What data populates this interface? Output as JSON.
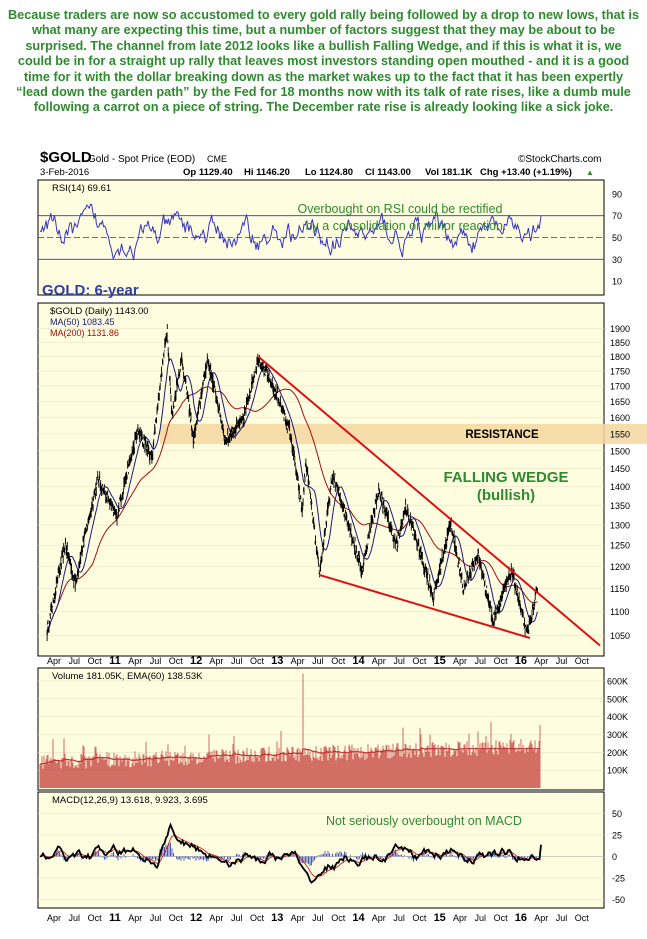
{
  "intro_text": "Because traders are now so accustomed to every gold rally being followed by a drop to new lows, that is what many are expecting this time, but a number of factors suggest that they may be about to be surprised. The channel from late 2012 looks like a bullish Falling Wedge, and if this is what it is, we could be in for a straight up rally that leaves most investors standing open mouthed - and it is a good time for it with the dollar breaking down as the market wakes up to the fact that it has been expertly “lead down the garden path” by the Fed for 18 months now with its talk of rate rises, like a dumb mule following a carrot on a piece of string. The December rate rise is already looking like a sick joke.",
  "header": {
    "symbol": "$GOLD",
    "name": "Gold - Spot Price (EOD)",
    "exchange": "CME",
    "date": "3-Feb-2016",
    "op": "Op 1129.40",
    "hi": "Hi 1146.20",
    "lo": "Lo 1124.80",
    "cl": "Cl 1143.00",
    "vol": "Vol 181.1K",
    "chg": "Chg +13.40 (+1.19%)",
    "chg_arrow": "▲",
    "brand": "©StockCharts.com"
  },
  "colors": {
    "panel_bg": "#fffde0",
    "price": "#000000",
    "ma50": "#1a1a7a",
    "ma200": "#a01010",
    "wedge": "#dd1111",
    "resistance": "#f5d7a0",
    "rsi": "#3535c0",
    "annotation_green": "#2e8b2e",
    "annotation_blue": "#2f3fa8",
    "volume": "#c03030",
    "macd": "#000000",
    "signal": "#cc2222",
    "hist": "#4a5ac0"
  },
  "annotations": {
    "rsi_note": [
      "Overbought on RSI could be rectified",
      "by a consolidation or minor reaction."
    ],
    "gold_title": "GOLD: 6-year",
    "resistance": "RESISTANCE",
    "wedge_title": "FALLING WEDGE",
    "wedge_sub": "(bullish)",
    "macd_note": "Not seriously overbought on MACD"
  },
  "chart_data": [
    {
      "type": "line",
      "panel": "rsi",
      "label": "RSI(14) 69.61",
      "series": [
        {
          "name": "RSI(14)",
          "last": 69.61
        }
      ],
      "ylim": [
        0,
        100
      ],
      "yticks": [
        10,
        30,
        50,
        70,
        90
      ],
      "reference_lines": [
        30,
        50,
        70
      ]
    },
    {
      "type": "line",
      "panel": "price",
      "legend": [
        "$GOLD (Daily) 1143.00",
        "MA(50) 1083.45",
        "MA(200) 1131.86"
      ],
      "x_date_range": [
        "2010-03-01",
        "2016-11-01"
      ],
      "yscale": "log",
      "ylim": [
        1025,
        1950
      ],
      "yticks": [
        1050,
        1100,
        1150,
        1200,
        1250,
        1300,
        1350,
        1400,
        1450,
        1500,
        1550,
        1600,
        1650,
        1700,
        1750,
        1800,
        1850,
        1900
      ],
      "series": [
        {
          "name": "$GOLD",
          "points": [
            [
              "2010-04-01",
              1060
            ],
            [
              "2010-06-20",
              1250
            ],
            [
              "2010-08-01",
              1160
            ],
            [
              "2010-11-08",
              1420
            ],
            [
              "2011-01-28",
              1320
            ],
            [
              "2011-05-01",
              1560
            ],
            [
              "2011-07-01",
              1480
            ],
            [
              "2011-09-06",
              1900
            ],
            [
              "2011-09-26",
              1600
            ],
            [
              "2011-11-08",
              1795
            ],
            [
              "2011-12-29",
              1530
            ],
            [
              "2012-02-28",
              1790
            ],
            [
              "2012-05-16",
              1530
            ],
            [
              "2012-08-01",
              1590
            ],
            [
              "2012-10-05",
              1795
            ],
            [
              "2012-12-31",
              1660
            ],
            [
              "2013-02-20",
              1560
            ],
            [
              "2013-04-15",
              1330
            ],
            [
              "2013-05-01",
              1470
            ],
            [
              "2013-06-28",
              1180
            ],
            [
              "2013-08-27",
              1430
            ],
            [
              "2013-12-31",
              1190
            ],
            [
              "2014-03-14",
              1390
            ],
            [
              "2014-05-30",
              1245
            ],
            [
              "2014-07-10",
              1345
            ],
            [
              "2014-11-07",
              1130
            ],
            [
              "2015-01-22",
              1305
            ],
            [
              "2015-03-17",
              1145
            ],
            [
              "2015-05-18",
              1230
            ],
            [
              "2015-07-24",
              1080
            ],
            [
              "2015-10-14",
              1190
            ],
            [
              "2015-12-17",
              1050
            ],
            [
              "2016-02-03",
              1143
            ]
          ]
        },
        {
          "name": "MA(50)",
          "last": 1083.45
        },
        {
          "name": "MA(200)",
          "last": 1131.86
        }
      ],
      "wedge_lines": [
        [
          [
            "2012-10-05",
            1800
          ],
          [
            "2016-11-01",
            1030
          ]
        ],
        [
          [
            "2013-07-01",
            1180
          ],
          [
            "2016-01-01",
            1045
          ]
        ]
      ],
      "resistance_band": [
        1520,
        1580
      ]
    },
    {
      "type": "bar",
      "panel": "volume",
      "label": "Volume 181.05K, EMA(60) 138.53K",
      "series": [
        {
          "name": "Volume",
          "last": "181.05K"
        },
        {
          "name": "EMA(60)",
          "last": "138.53K"
        }
      ],
      "ylim": [
        0,
        650000
      ],
      "yticks": [
        "100K",
        "200K",
        "300K",
        "400K",
        "500K",
        "600K"
      ]
    },
    {
      "type": "line",
      "panel": "macd",
      "label": "MACD(12,26,9) 13.618, 9.923, 3.695",
      "series": [
        {
          "name": "MACD",
          "last": 13.618
        },
        {
          "name": "Signal",
          "last": 9.923
        },
        {
          "name": "Histogram",
          "last": 3.695
        }
      ],
      "ylim": [
        -55,
        70
      ],
      "yticks": [
        -50,
        -25,
        0,
        25,
        50
      ]
    }
  ],
  "x_axis": {
    "labels": [
      "Apr",
      "Jul",
      "Oct",
      "11",
      "Apr",
      "Jul",
      "Oct",
      "12",
      "Apr",
      "Jul",
      "Oct",
      "13",
      "Apr",
      "Jul",
      "Oct",
      "14",
      "Apr",
      "Jul",
      "Oct",
      "15",
      "Apr",
      "Jul",
      "Oct",
      "16",
      "Apr",
      "Jul",
      "Oct"
    ],
    "bold": [
      "11",
      "12",
      "13",
      "14",
      "15",
      "16"
    ]
  }
}
